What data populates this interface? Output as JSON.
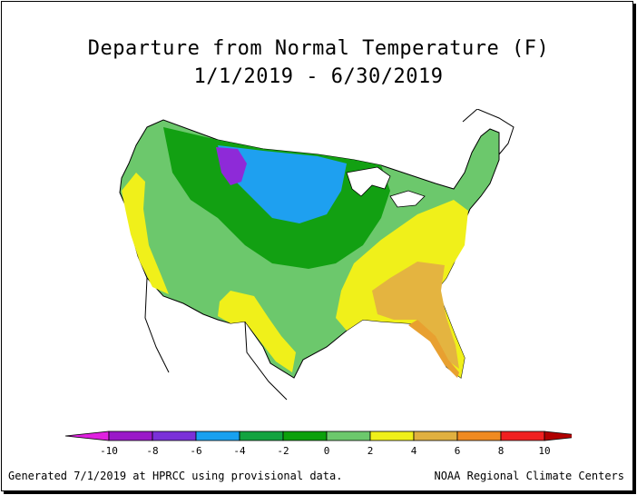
{
  "title_line1": "Departure from Normal Temperature (F)",
  "title_line2": "1/1/2019 - 6/30/2019",
  "legend": {
    "tick_labels": [
      "-10",
      "-8",
      "-6",
      "-4",
      "-2",
      "0",
      "2",
      "4",
      "6",
      "8",
      "10"
    ],
    "colors": [
      "#e020e0",
      "#9a18c8",
      "#7a30d8",
      "#18a0f0",
      "#13a340",
      "#0ca00c",
      "#6cc86c",
      "#f0f01a",
      "#e0b040",
      "#f08a20",
      "#f02020",
      "#b00000"
    ]
  },
  "footer_left": "Generated 7/1/2019 at HPRCC using provisional data.",
  "footer_right": "NOAA Regional Climate Centers",
  "map_colors": {
    "green_light": "#6cc86c",
    "green": "#12a012",
    "blue": "#1ea0f0",
    "purple": "#8e2ad8",
    "yellow": "#f0f01a",
    "tan": "#e4b440",
    "orange": "#e8a030"
  }
}
